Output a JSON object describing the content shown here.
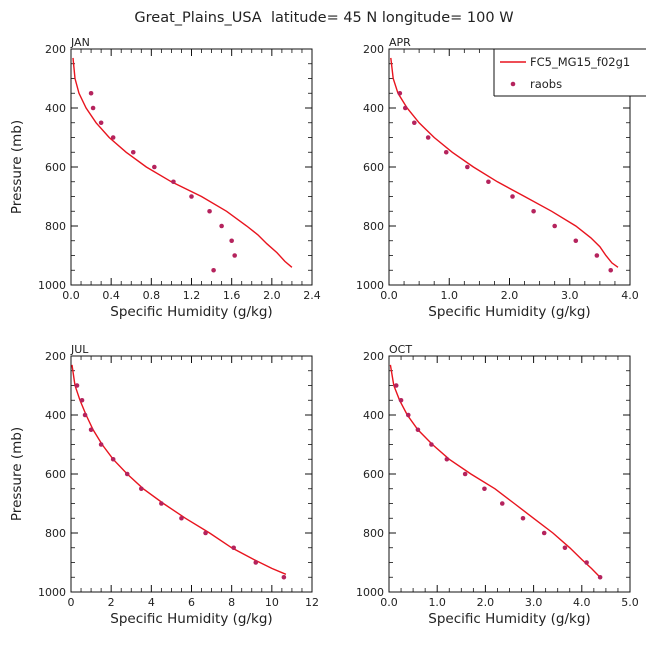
{
  "figure_title": "Great_Plains_USA  latitude= 45 N longitude= 100 W",
  "colors": {
    "model": "#e8141e",
    "obs": "#b5235d",
    "axis": "#111111"
  },
  "legend": {
    "model_label": "FC5_MG15_f02g1",
    "obs_label": "raobs",
    "placement": "top-right"
  },
  "chart_data": [
    {
      "type": "line",
      "title": "JAN",
      "xlabel": "Specific Humidity (g/kg)",
      "ylabel": "Pressure (mb)",
      "xlim": [
        0,
        2.4
      ],
      "ylim": [
        1000,
        200
      ],
      "xticks": [
        "0.0",
        "0.4",
        "0.8",
        "1.2",
        "1.6",
        "2.0",
        "2.4"
      ],
      "yticks": [
        "200",
        "400",
        "600",
        "800",
        "1000"
      ],
      "series": [
        {
          "kind": "line",
          "x": [
            0.02,
            0.04,
            0.08,
            0.15,
            0.25,
            0.38,
            0.55,
            0.75,
            1.0,
            1.3,
            1.55,
            1.75,
            1.86,
            1.95,
            2.05,
            2.13,
            2.2
          ],
          "y": [
            230,
            300,
            350,
            400,
            450,
            500,
            550,
            600,
            650,
            700,
            750,
            800,
            830,
            860,
            890,
            920,
            940
          ]
        },
        {
          "kind": "scatter",
          "x": [
            0.2,
            0.22,
            0.3,
            0.42,
            0.62,
            0.83,
            1.02,
            1.2,
            1.38,
            1.5,
            1.6,
            1.63,
            1.42
          ],
          "y": [
            350,
            400,
            450,
            500,
            550,
            600,
            650,
            700,
            750,
            800,
            850,
            900,
            950
          ]
        }
      ]
    },
    {
      "type": "line",
      "title": "APR",
      "xlabel": "Specific Humidity (g/kg)",
      "ylabel": "",
      "xlim": [
        0,
        4.0
      ],
      "ylim": [
        1000,
        200
      ],
      "xticks": [
        "0.0",
        "1.0",
        "2.0",
        "3.0",
        "4.0"
      ],
      "yticks": [
        "200",
        "400",
        "600",
        "800",
        "1000"
      ],
      "series": [
        {
          "kind": "line",
          "x": [
            0.03,
            0.07,
            0.15,
            0.3,
            0.5,
            0.75,
            1.05,
            1.4,
            1.8,
            2.25,
            2.7,
            3.1,
            3.35,
            3.5,
            3.6,
            3.7,
            3.8
          ],
          "y": [
            230,
            300,
            350,
            400,
            450,
            500,
            550,
            600,
            650,
            700,
            750,
            800,
            840,
            870,
            900,
            925,
            940
          ]
        },
        {
          "kind": "scatter",
          "x": [
            0.18,
            0.27,
            0.42,
            0.65,
            0.95,
            1.3,
            1.65,
            2.05,
            2.4,
            2.75,
            3.1,
            3.45,
            3.68
          ],
          "y": [
            350,
            400,
            450,
            500,
            550,
            600,
            650,
            700,
            750,
            800,
            850,
            900,
            950
          ]
        }
      ]
    },
    {
      "type": "line",
      "title": "JUL",
      "xlabel": "Specific Humidity (g/kg)",
      "ylabel": "Pressure (mb)",
      "xlim": [
        0,
        12
      ],
      "ylim": [
        1000,
        200
      ],
      "xticks": [
        "0",
        "2",
        "4",
        "6",
        "8",
        "10",
        "12"
      ],
      "yticks": [
        "200",
        "400",
        "600",
        "800",
        "1000"
      ],
      "series": [
        {
          "kind": "line",
          "x": [
            0.05,
            0.2,
            0.45,
            0.75,
            1.1,
            1.55,
            2.1,
            2.8,
            3.6,
            4.6,
            5.7,
            6.9,
            8.0,
            9.1,
            10.0,
            10.7
          ],
          "y": [
            230,
            300,
            350,
            400,
            450,
            500,
            550,
            600,
            650,
            700,
            750,
            800,
            850,
            890,
            920,
            940
          ]
        },
        {
          "kind": "scatter",
          "x": [
            0.3,
            0.55,
            0.7,
            1.0,
            1.5,
            2.1,
            2.8,
            3.5,
            4.5,
            5.5,
            6.7,
            8.1,
            9.2,
            10.6
          ],
          "y": [
            300,
            350,
            400,
            450,
            500,
            550,
            600,
            650,
            700,
            750,
            800,
            850,
            900,
            950
          ]
        }
      ]
    },
    {
      "type": "line",
      "title": "OCT",
      "xlabel": "Specific Humidity (g/kg)",
      "ylabel": "",
      "xlim": [
        0,
        5.0
      ],
      "ylim": [
        1000,
        200
      ],
      "xticks": [
        "0.0",
        "1.0",
        "2.0",
        "3.0",
        "4.0",
        "5.0"
      ],
      "yticks": [
        "200",
        "400",
        "600",
        "800",
        "1000"
      ],
      "series": [
        {
          "kind": "line",
          "x": [
            0.03,
            0.1,
            0.22,
            0.38,
            0.6,
            0.9,
            1.25,
            1.7,
            2.2,
            2.6,
            3.0,
            3.4,
            3.75,
            4.0,
            4.2,
            4.38
          ],
          "y": [
            230,
            300,
            350,
            400,
            450,
            500,
            550,
            600,
            650,
            700,
            750,
            800,
            850,
            890,
            920,
            950
          ]
        },
        {
          "kind": "scatter",
          "x": [
            0.15,
            0.25,
            0.4,
            0.6,
            0.88,
            1.2,
            1.58,
            1.98,
            2.35,
            2.78,
            3.22,
            3.65,
            4.1,
            4.38
          ],
          "y": [
            300,
            350,
            400,
            450,
            500,
            550,
            600,
            650,
            700,
            750,
            800,
            850,
            900,
            950
          ]
        }
      ]
    }
  ]
}
